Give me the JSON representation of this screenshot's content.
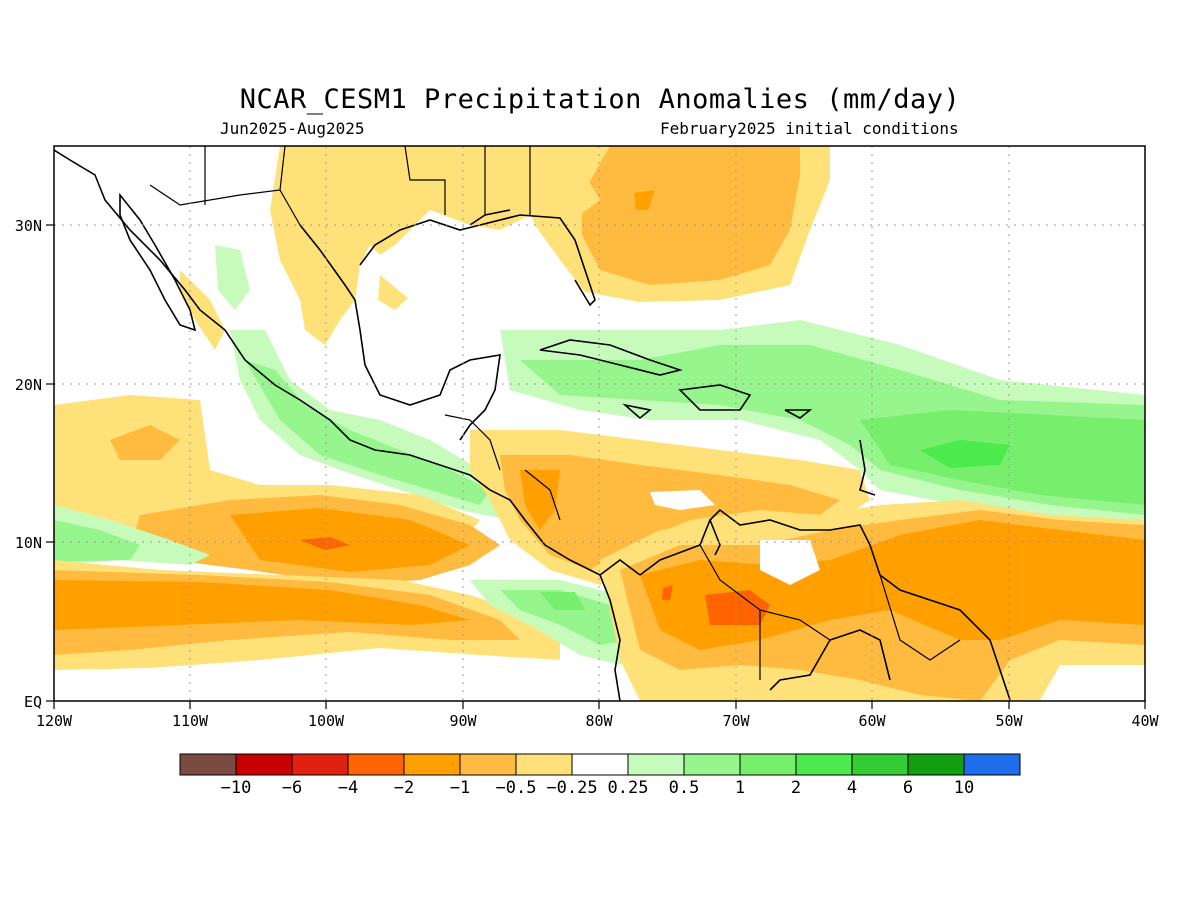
{
  "title": "NCAR_CESM1 Precipitation Anomalies (mm/day)",
  "period": "Jun2025-Aug2025",
  "init": "February2025 initial conditions",
  "lon_labels": [
    "120W",
    "110W",
    "100W",
    "90W",
    "80W",
    "70W",
    "60W",
    "50W",
    "40W"
  ],
  "lat_labels": [
    "EQ",
    "10N",
    "20N",
    "30N"
  ],
  "colorbar": {
    "labels": [
      "−10",
      "−6",
      "−4",
      "−2",
      "−1",
      "−0.5",
      "−0.25",
      "0.25",
      "0.5",
      "1",
      "2",
      "4",
      "6",
      "10"
    ],
    "colors": [
      "#7a4b43",
      "#c80000",
      "#e02010",
      "#ff6400",
      "#ff9f00",
      "#ffbb40",
      "#ffe17a",
      "#ffffff",
      "#c6fbbc",
      "#96f58c",
      "#78ee6d",
      "#4cea4c",
      "#33cc33",
      "#12a012",
      "#1e6eeb"
    ]
  },
  "map": {
    "region": "Central America, Caribbean and northern South America",
    "lon_range": [
      -120,
      -40
    ],
    "lat_range": [
      0,
      35
    ]
  }
}
